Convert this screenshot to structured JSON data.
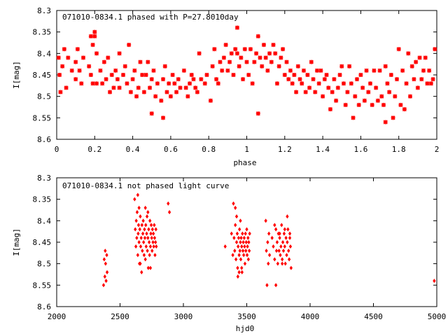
{
  "chart_data": [
    {
      "type": "scatter",
      "title": "071010-0834.1 phased with P=27.8010day",
      "xlabel": "phase",
      "ylabel": "I[mag]",
      "xlim": [
        0,
        2
      ],
      "ylim": [
        8.3,
        8.6
      ],
      "y_inverted": true,
      "grid": false,
      "legend": "none",
      "xticks": [
        "0",
        "0.2",
        "0.4",
        "0.6",
        "0.8",
        "1",
        "1.2",
        "1.4",
        "1.6",
        "1.8",
        "2"
      ],
      "yticks": [
        "8.3",
        "8.35",
        "8.4",
        "8.45",
        "8.5",
        "8.55",
        "8.6"
      ],
      "marker_color": "#ff0000",
      "points": [
        [
          0.01,
          8.41
        ],
        [
          0.015,
          8.45
        ],
        [
          0.02,
          8.49
        ],
        [
          0.03,
          8.43
        ],
        [
          0.04,
          8.39
        ],
        [
          0.05,
          8.48
        ],
        [
          0.06,
          8.41
        ],
        [
          0.08,
          8.44
        ],
        [
          0.1,
          8.42
        ],
        [
          0.1,
          8.46
        ],
        [
          0.11,
          8.39
        ],
        [
          0.12,
          8.44
        ],
        [
          0.13,
          8.47
        ],
        [
          0.14,
          8.41
        ],
        [
          0.17,
          8.43
        ],
        [
          0.18,
          8.45
        ],
        [
          0.18,
          8.36
        ],
        [
          0.19,
          8.47
        ],
        [
          0.19,
          8.38
        ],
        [
          0.2,
          8.35
        ],
        [
          0.2,
          8.36
        ],
        [
          0.21,
          8.4
        ],
        [
          0.21,
          8.47
        ],
        [
          0.23,
          8.44
        ],
        [
          0.24,
          8.47
        ],
        [
          0.25,
          8.42
        ],
        [
          0.26,
          8.46
        ],
        [
          0.27,
          8.41
        ],
        [
          0.28,
          8.49
        ],
        [
          0.29,
          8.45
        ],
        [
          0.3,
          8.48
        ],
        [
          0.31,
          8.44
        ],
        [
          0.32,
          8.46
        ],
        [
          0.33,
          8.4
        ],
        [
          0.33,
          8.48
        ],
        [
          0.35,
          8.45
        ],
        [
          0.36,
          8.43
        ],
        [
          0.37,
          8.47
        ],
        [
          0.38,
          8.38
        ],
        [
          0.39,
          8.49
        ],
        [
          0.4,
          8.46
        ],
        [
          0.41,
          8.44
        ],
        [
          0.42,
          8.5
        ],
        [
          0.43,
          8.48
        ],
        [
          0.44,
          8.42
        ],
        [
          0.45,
          8.45
        ],
        [
          0.46,
          8.49
        ],
        [
          0.47,
          8.45
        ],
        [
          0.48,
          8.42
        ],
        [
          0.49,
          8.48
        ],
        [
          0.5,
          8.46
        ],
        [
          0.5,
          8.54
        ],
        [
          0.51,
          8.44
        ],
        [
          0.52,
          8.5
        ],
        [
          0.53,
          8.47
        ],
        [
          0.55,
          8.51
        ],
        [
          0.56,
          8.46
        ],
        [
          0.56,
          8.55
        ],
        [
          0.57,
          8.43
        ],
        [
          0.58,
          8.49
        ],
        [
          0.59,
          8.47
        ],
        [
          0.6,
          8.5
        ],
        [
          0.61,
          8.45
        ],
        [
          0.62,
          8.47
        ],
        [
          0.63,
          8.49
        ],
        [
          0.64,
          8.46
        ],
        [
          0.65,
          8.48
        ],
        [
          0.67,
          8.44
        ],
        [
          0.68,
          8.48
        ],
        [
          0.69,
          8.5
        ],
        [
          0.7,
          8.47
        ],
        [
          0.71,
          8.45
        ],
        [
          0.72,
          8.46
        ],
        [
          0.73,
          8.48
        ],
        [
          0.74,
          8.49
        ],
        [
          0.75,
          8.4
        ],
        [
          0.76,
          8.46
        ],
        [
          0.78,
          8.47
        ],
        [
          0.79,
          8.45
        ],
        [
          0.81,
          8.51
        ],
        [
          0.82,
          8.43
        ],
        [
          0.83,
          8.39
        ],
        [
          0.84,
          8.46
        ],
        [
          0.85,
          8.47
        ],
        [
          0.86,
          8.42
        ],
        [
          0.87,
          8.44
        ],
        [
          0.88,
          8.41
        ],
        [
          0.89,
          8.38
        ],
        [
          0.9,
          8.44
        ],
        [
          0.91,
          8.42
        ],
        [
          0.92,
          8.4
        ],
        [
          0.93,
          8.45
        ],
        [
          0.94,
          8.39
        ],
        [
          0.95,
          8.34
        ],
        [
          0.95,
          8.4
        ],
        [
          0.96,
          8.43
        ],
        [
          0.97,
          8.41
        ],
        [
          0.98,
          8.46
        ],
        [
          0.99,
          8.39
        ],
        [
          1.0,
          8.42
        ],
        [
          1.01,
          8.45
        ],
        [
          1.02,
          8.39
        ],
        [
          1.03,
          8.47
        ],
        [
          1.04,
          8.42
        ],
        [
          1.05,
          8.4
        ],
        [
          1.06,
          8.54
        ],
        [
          1.06,
          8.36
        ],
        [
          1.07,
          8.41
        ],
        [
          1.08,
          8.43
        ],
        [
          1.09,
          8.38
        ],
        [
          1.1,
          8.41
        ],
        [
          1.11,
          8.44
        ],
        [
          1.12,
          8.4
        ],
        [
          1.13,
          8.42
        ],
        [
          1.14,
          8.38
        ],
        [
          1.15,
          8.4
        ],
        [
          1.16,
          8.47
        ],
        [
          1.17,
          8.43
        ],
        [
          1.18,
          8.41
        ],
        [
          1.19,
          8.39
        ],
        [
          1.2,
          8.45
        ],
        [
          1.21,
          8.42
        ],
        [
          1.22,
          8.46
        ],
        [
          1.23,
          8.44
        ],
        [
          1.24,
          8.47
        ],
        [
          1.25,
          8.45
        ],
        [
          1.26,
          8.49
        ],
        [
          1.27,
          8.43
        ],
        [
          1.28,
          8.46
        ],
        [
          1.29,
          8.47
        ],
        [
          1.3,
          8.44
        ],
        [
          1.31,
          8.49
        ],
        [
          1.32,
          8.45
        ],
        [
          1.33,
          8.48
        ],
        [
          1.34,
          8.42
        ],
        [
          1.35,
          8.46
        ],
        [
          1.36,
          8.49
        ],
        [
          1.37,
          8.44
        ],
        [
          1.38,
          8.47
        ],
        [
          1.39,
          8.44
        ],
        [
          1.4,
          8.5
        ],
        [
          1.41,
          8.46
        ],
        [
          1.42,
          8.45
        ],
        [
          1.43,
          8.48
        ],
        [
          1.44,
          8.53
        ],
        [
          1.45,
          8.49
        ],
        [
          1.46,
          8.46
        ],
        [
          1.47,
          8.51
        ],
        [
          1.48,
          8.48
        ],
        [
          1.49,
          8.45
        ],
        [
          1.5,
          8.43
        ],
        [
          1.51,
          8.47
        ],
        [
          1.52,
          8.52
        ],
        [
          1.53,
          8.49
        ],
        [
          1.54,
          8.43
        ],
        [
          1.55,
          8.47
        ],
        [
          1.56,
          8.55
        ],
        [
          1.57,
          8.5
        ],
        [
          1.58,
          8.46
        ],
        [
          1.59,
          8.52
        ],
        [
          1.6,
          8.45
        ],
        [
          1.61,
          8.48
        ],
        [
          1.62,
          8.51
        ],
        [
          1.63,
          8.44
        ],
        [
          1.64,
          8.49
        ],
        [
          1.65,
          8.47
        ],
        [
          1.66,
          8.52
        ],
        [
          1.67,
          8.44
        ],
        [
          1.68,
          8.48
        ],
        [
          1.69,
          8.51
        ],
        [
          1.7,
          8.44
        ],
        [
          1.71,
          8.5
        ],
        [
          1.72,
          8.52
        ],
        [
          1.73,
          8.43
        ],
        [
          1.73,
          8.56
        ],
        [
          1.74,
          8.47
        ],
        [
          1.75,
          8.49
        ],
        [
          1.76,
          8.45
        ],
        [
          1.77,
          8.55
        ],
        [
          1.78,
          8.5
        ],
        [
          1.79,
          8.46
        ],
        [
          1.8,
          8.39
        ],
        [
          1.81,
          8.52
        ],
        [
          1.82,
          8.44
        ],
        [
          1.83,
          8.53
        ],
        [
          1.84,
          8.47
        ],
        [
          1.85,
          8.4
        ],
        [
          1.86,
          8.5
        ],
        [
          1.87,
          8.43
        ],
        [
          1.88,
          8.46
        ],
        [
          1.89,
          8.42
        ],
        [
          1.9,
          8.48
        ],
        [
          1.91,
          8.41
        ],
        [
          1.92,
          8.46
        ],
        [
          1.93,
          8.44
        ],
        [
          1.94,
          8.41
        ],
        [
          1.95,
          8.47
        ],
        [
          1.96,
          8.44
        ],
        [
          1.97,
          8.47
        ],
        [
          1.98,
          8.46
        ],
        [
          1.99,
          8.39
        ]
      ]
    },
    {
      "type": "scatter",
      "title": "071010-0834.1 not phased light curve",
      "xlabel": "hjd0",
      "ylabel": "I[mag]",
      "xlim": [
        2000,
        5000
      ],
      "ylim": [
        8.3,
        8.6
      ],
      "y_inverted": true,
      "grid": false,
      "legend": "none",
      "xticks": [
        "2000",
        "2500",
        "3000",
        "3500",
        "4000",
        "4500",
        "5000"
      ],
      "yticks": [
        "8.3",
        "8.35",
        "8.4",
        "8.45",
        "8.5",
        "8.55",
        "8.6"
      ],
      "marker_color": "#ff0000",
      "points": [
        [
          2370,
          8.55
        ],
        [
          2375,
          8.49
        ],
        [
          2380,
          8.53
        ],
        [
          2383,
          8.47
        ],
        [
          2386,
          8.5
        ],
        [
          2390,
          8.54
        ],
        [
          2395,
          8.48
        ],
        [
          2398,
          8.52
        ],
        [
          2615,
          8.35
        ],
        [
          2620,
          8.42
        ],
        [
          2625,
          8.46
        ],
        [
          2628,
          8.4
        ],
        [
          2632,
          8.44
        ],
        [
          2635,
          8.38
        ],
        [
          2640,
          8.48
        ],
        [
          2643,
          8.43
        ],
        [
          2646,
          8.41
        ],
        [
          2650,
          8.45
        ],
        [
          2653,
          8.5
        ],
        [
          2656,
          8.42
        ],
        [
          2660,
          8.39
        ],
        [
          2663,
          8.46
        ],
        [
          2667,
          8.44
        ],
        [
          2670,
          8.52
        ],
        [
          2673,
          8.41
        ],
        [
          2676,
          8.47
        ],
        [
          2680,
          8.43
        ],
        [
          2683,
          8.4
        ],
        [
          2686,
          8.45
        ],
        [
          2690,
          8.48
        ],
        [
          2693,
          8.42
        ],
        [
          2696,
          8.44
        ],
        [
          2700,
          8.49
        ],
        [
          2703,
          8.41
        ],
        [
          2706,
          8.46
        ],
        [
          2710,
          8.43
        ],
        [
          2713,
          8.39
        ],
        [
          2716,
          8.47
        ],
        [
          2720,
          8.44
        ],
        [
          2723,
          8.51
        ],
        [
          2726,
          8.42
        ],
        [
          2730,
          8.45
        ],
        [
          2733,
          8.48
        ],
        [
          2736,
          8.4
        ],
        [
          2740,
          8.46
        ],
        [
          2743,
          8.43
        ],
        [
          2746,
          8.41
        ],
        [
          2750,
          8.44
        ],
        [
          2753,
          8.47
        ],
        [
          2756,
          8.42
        ],
        [
          2760,
          8.45
        ],
        [
          2763,
          8.43
        ],
        [
          2766,
          8.46
        ],
        [
          2770,
          8.41
        ],
        [
          2773,
          8.44
        ],
        [
          2776,
          8.48
        ],
        [
          2780,
          8.45
        ],
        [
          2783,
          8.42
        ],
        [
          2786,
          8.46
        ],
        [
          2640,
          8.34
        ],
        [
          2650,
          8.37
        ],
        [
          2660,
          8.5
        ],
        [
          2700,
          8.37
        ],
        [
          2720,
          8.38
        ],
        [
          2740,
          8.51
        ],
        [
          2880,
          8.36
        ],
        [
          2890,
          8.38
        ],
        [
          3330,
          8.46
        ],
        [
          3380,
          8.43
        ],
        [
          3390,
          8.48
        ],
        [
          3395,
          8.36
        ],
        [
          3400,
          8.44
        ],
        [
          3405,
          8.47
        ],
        [
          3410,
          8.41
        ],
        [
          3415,
          8.49
        ],
        [
          3420,
          8.45
        ],
        [
          3425,
          8.43
        ],
        [
          3428,
          8.51
        ],
        [
          3432,
          8.46
        ],
        [
          3436,
          8.44
        ],
        [
          3440,
          8.48
        ],
        [
          3443,
          8.42
        ],
        [
          3446,
          8.47
        ],
        [
          3450,
          8.45
        ],
        [
          3453,
          8.49
        ],
        [
          3456,
          8.44
        ],
        [
          3460,
          8.46
        ],
        [
          3463,
          8.52
        ],
        [
          3466,
          8.43
        ],
        [
          3470,
          8.47
        ],
        [
          3473,
          8.45
        ],
        [
          3476,
          8.48
        ],
        [
          3480,
          8.44
        ],
        [
          3483,
          8.46
        ],
        [
          3486,
          8.5
        ],
        [
          3490,
          8.43
        ],
        [
          3493,
          8.47
        ],
        [
          3496,
          8.45
        ],
        [
          3500,
          8.42
        ],
        [
          3503,
          8.48
        ],
        [
          3506,
          8.46
        ],
        [
          3510,
          8.44
        ],
        [
          3513,
          8.49
        ],
        [
          3516,
          8.45
        ],
        [
          3520,
          8.47
        ],
        [
          3523,
          8.43
        ],
        [
          3410,
          8.37
        ],
        [
          3420,
          8.39
        ],
        [
          3430,
          8.53
        ],
        [
          3440,
          8.52
        ],
        [
          3450,
          8.4
        ],
        [
          3460,
          8.51
        ],
        [
          3650,
          8.4
        ],
        [
          3655,
          8.47
        ],
        [
          3660,
          8.55
        ],
        [
          3665,
          8.45
        ],
        [
          3670,
          8.5
        ],
        [
          3675,
          8.43
        ],
        [
          3680,
          8.48
        ],
        [
          3700,
          8.44
        ],
        [
          3710,
          8.46
        ],
        [
          3720,
          8.49
        ],
        [
          3730,
          8.42
        ],
        [
          3735,
          8.47
        ],
        [
          3740,
          8.45
        ],
        [
          3745,
          8.5
        ],
        [
          3750,
          8.43
        ],
        [
          3755,
          8.47
        ],
        [
          3760,
          8.44
        ],
        [
          3765,
          8.48
        ],
        [
          3770,
          8.46
        ],
        [
          3775,
          8.41
        ],
        [
          3780,
          8.49
        ],
        [
          3785,
          8.45
        ],
        [
          3790,
          8.47
        ],
        [
          3795,
          8.43
        ],
        [
          3800,
          8.46
        ],
        [
          3805,
          8.5
        ],
        [
          3810,
          8.44
        ],
        [
          3815,
          8.48
        ],
        [
          3820,
          8.45
        ],
        [
          3825,
          8.42
        ],
        [
          3830,
          8.47
        ],
        [
          3835,
          8.49
        ],
        [
          3840,
          8.44
        ],
        [
          3845,
          8.46
        ],
        [
          3850,
          8.51
        ],
        [
          3720,
          8.41
        ],
        [
          3730,
          8.55
        ],
        [
          3760,
          8.43
        ],
        [
          3780,
          8.5
        ],
        [
          3800,
          8.42
        ],
        [
          3820,
          8.39
        ],
        [
          3840,
          8.43
        ],
        [
          4980,
          8.54
        ]
      ]
    }
  ]
}
